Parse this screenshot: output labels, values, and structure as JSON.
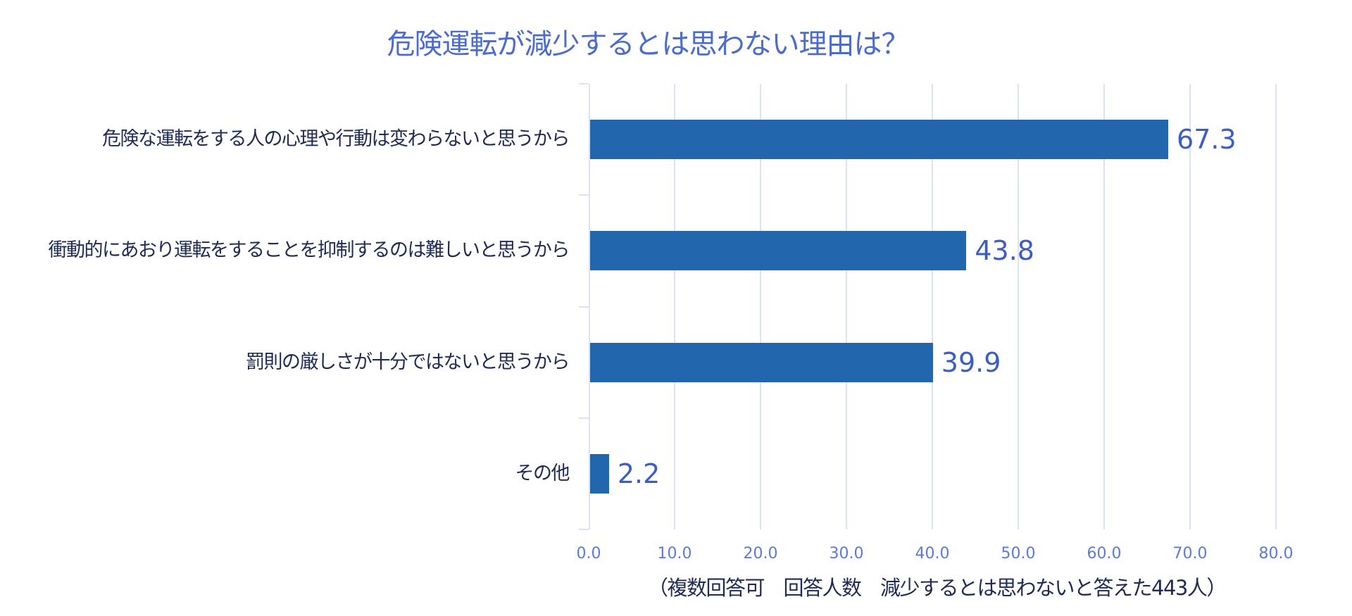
{
  "chart_data": {
    "type": "bar",
    "orientation": "horizontal",
    "title": "危険運転が減少するとは思わない理由は？",
    "categories": [
      "危険な運転をする人の心理や行動は変わらないと思うから",
      "衝動的にあおり運転をすることを抑制するのは難しいと思うから",
      "罰則の厳しさが十分ではないと思うから",
      "その他"
    ],
    "values": [
      67.3,
      43.8,
      39.9,
      2.2
    ],
    "value_labels": [
      "67.3",
      "43.8",
      "39.9",
      "2.2"
    ],
    "xlabel": "（複数回答可　回答人数　減少するとは思わないと答えた443人）",
    "ylabel": "",
    "xlim": [
      0,
      80
    ],
    "x_ticks": [
      "0.0",
      "10.0",
      "20.0",
      "30.0",
      "40.0",
      "50.0",
      "60.0",
      "70.0",
      "80.0"
    ],
    "grid": "vertical",
    "legend": "none",
    "colors": {
      "bar": "#2266AE",
      "title": "#4B6CCB",
      "value_label": "#3C5DC2",
      "category_label": "#1F2A55",
      "tick_label": "#5B7BD5",
      "gridline": "#DCE3F5"
    }
  }
}
